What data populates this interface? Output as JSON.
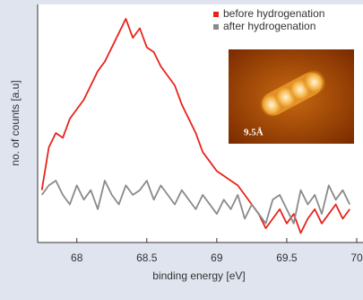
{
  "chart_data": {
    "type": "line",
    "xlabel": "binding energy [eV]",
    "ylabel": "no. of counts [a.u]",
    "annotations": [
      "9.5Å"
    ],
    "x": [
      67.75,
      67.8,
      67.85,
      67.9,
      67.95,
      68.0,
      68.05,
      68.1,
      68.15,
      68.2,
      68.25,
      68.3,
      68.35,
      68.4,
      68.45,
      68.5,
      68.55,
      68.6,
      68.65,
      68.7,
      68.75,
      68.8,
      68.85,
      68.9,
      68.95,
      69.0,
      69.05,
      69.1,
      69.15,
      69.2,
      69.25,
      69.3,
      69.35,
      69.4,
      69.45,
      69.5,
      69.55,
      69.6,
      69.65,
      69.7,
      69.75,
      69.8,
      69.85,
      69.9,
      69.95
    ],
    "series": [
      {
        "name": "before hydrogenation",
        "color": "#e8231c",
        "values": [
          22,
          40,
          46,
          44,
          52,
          56,
          60,
          66,
          72,
          76,
          82,
          88,
          94,
          86,
          90,
          82,
          80,
          74,
          70,
          66,
          58,
          52,
          46,
          38,
          34,
          30,
          28,
          26,
          24,
          20,
          16,
          12,
          6,
          10,
          14,
          8,
          12,
          4,
          10,
          14,
          8,
          12,
          16,
          10,
          14
        ]
      },
      {
        "name": "after hydrogenation",
        "color": "#8a8a8a",
        "values": [
          20,
          24,
          26,
          20,
          16,
          24,
          18,
          22,
          14,
          26,
          20,
          16,
          24,
          20,
          22,
          26,
          18,
          24,
          20,
          16,
          22,
          18,
          14,
          20,
          16,
          12,
          18,
          14,
          20,
          10,
          16,
          12,
          8,
          18,
          20,
          14,
          8,
          22,
          16,
          20,
          12,
          24,
          18,
          22,
          16
        ]
      }
    ],
    "xlim": [
      67.72,
      70.0
    ],
    "xticks": [
      68,
      68.5,
      69,
      69.5,
      70
    ],
    "ylim": [
      0,
      100
    ],
    "legend": "top-right"
  }
}
